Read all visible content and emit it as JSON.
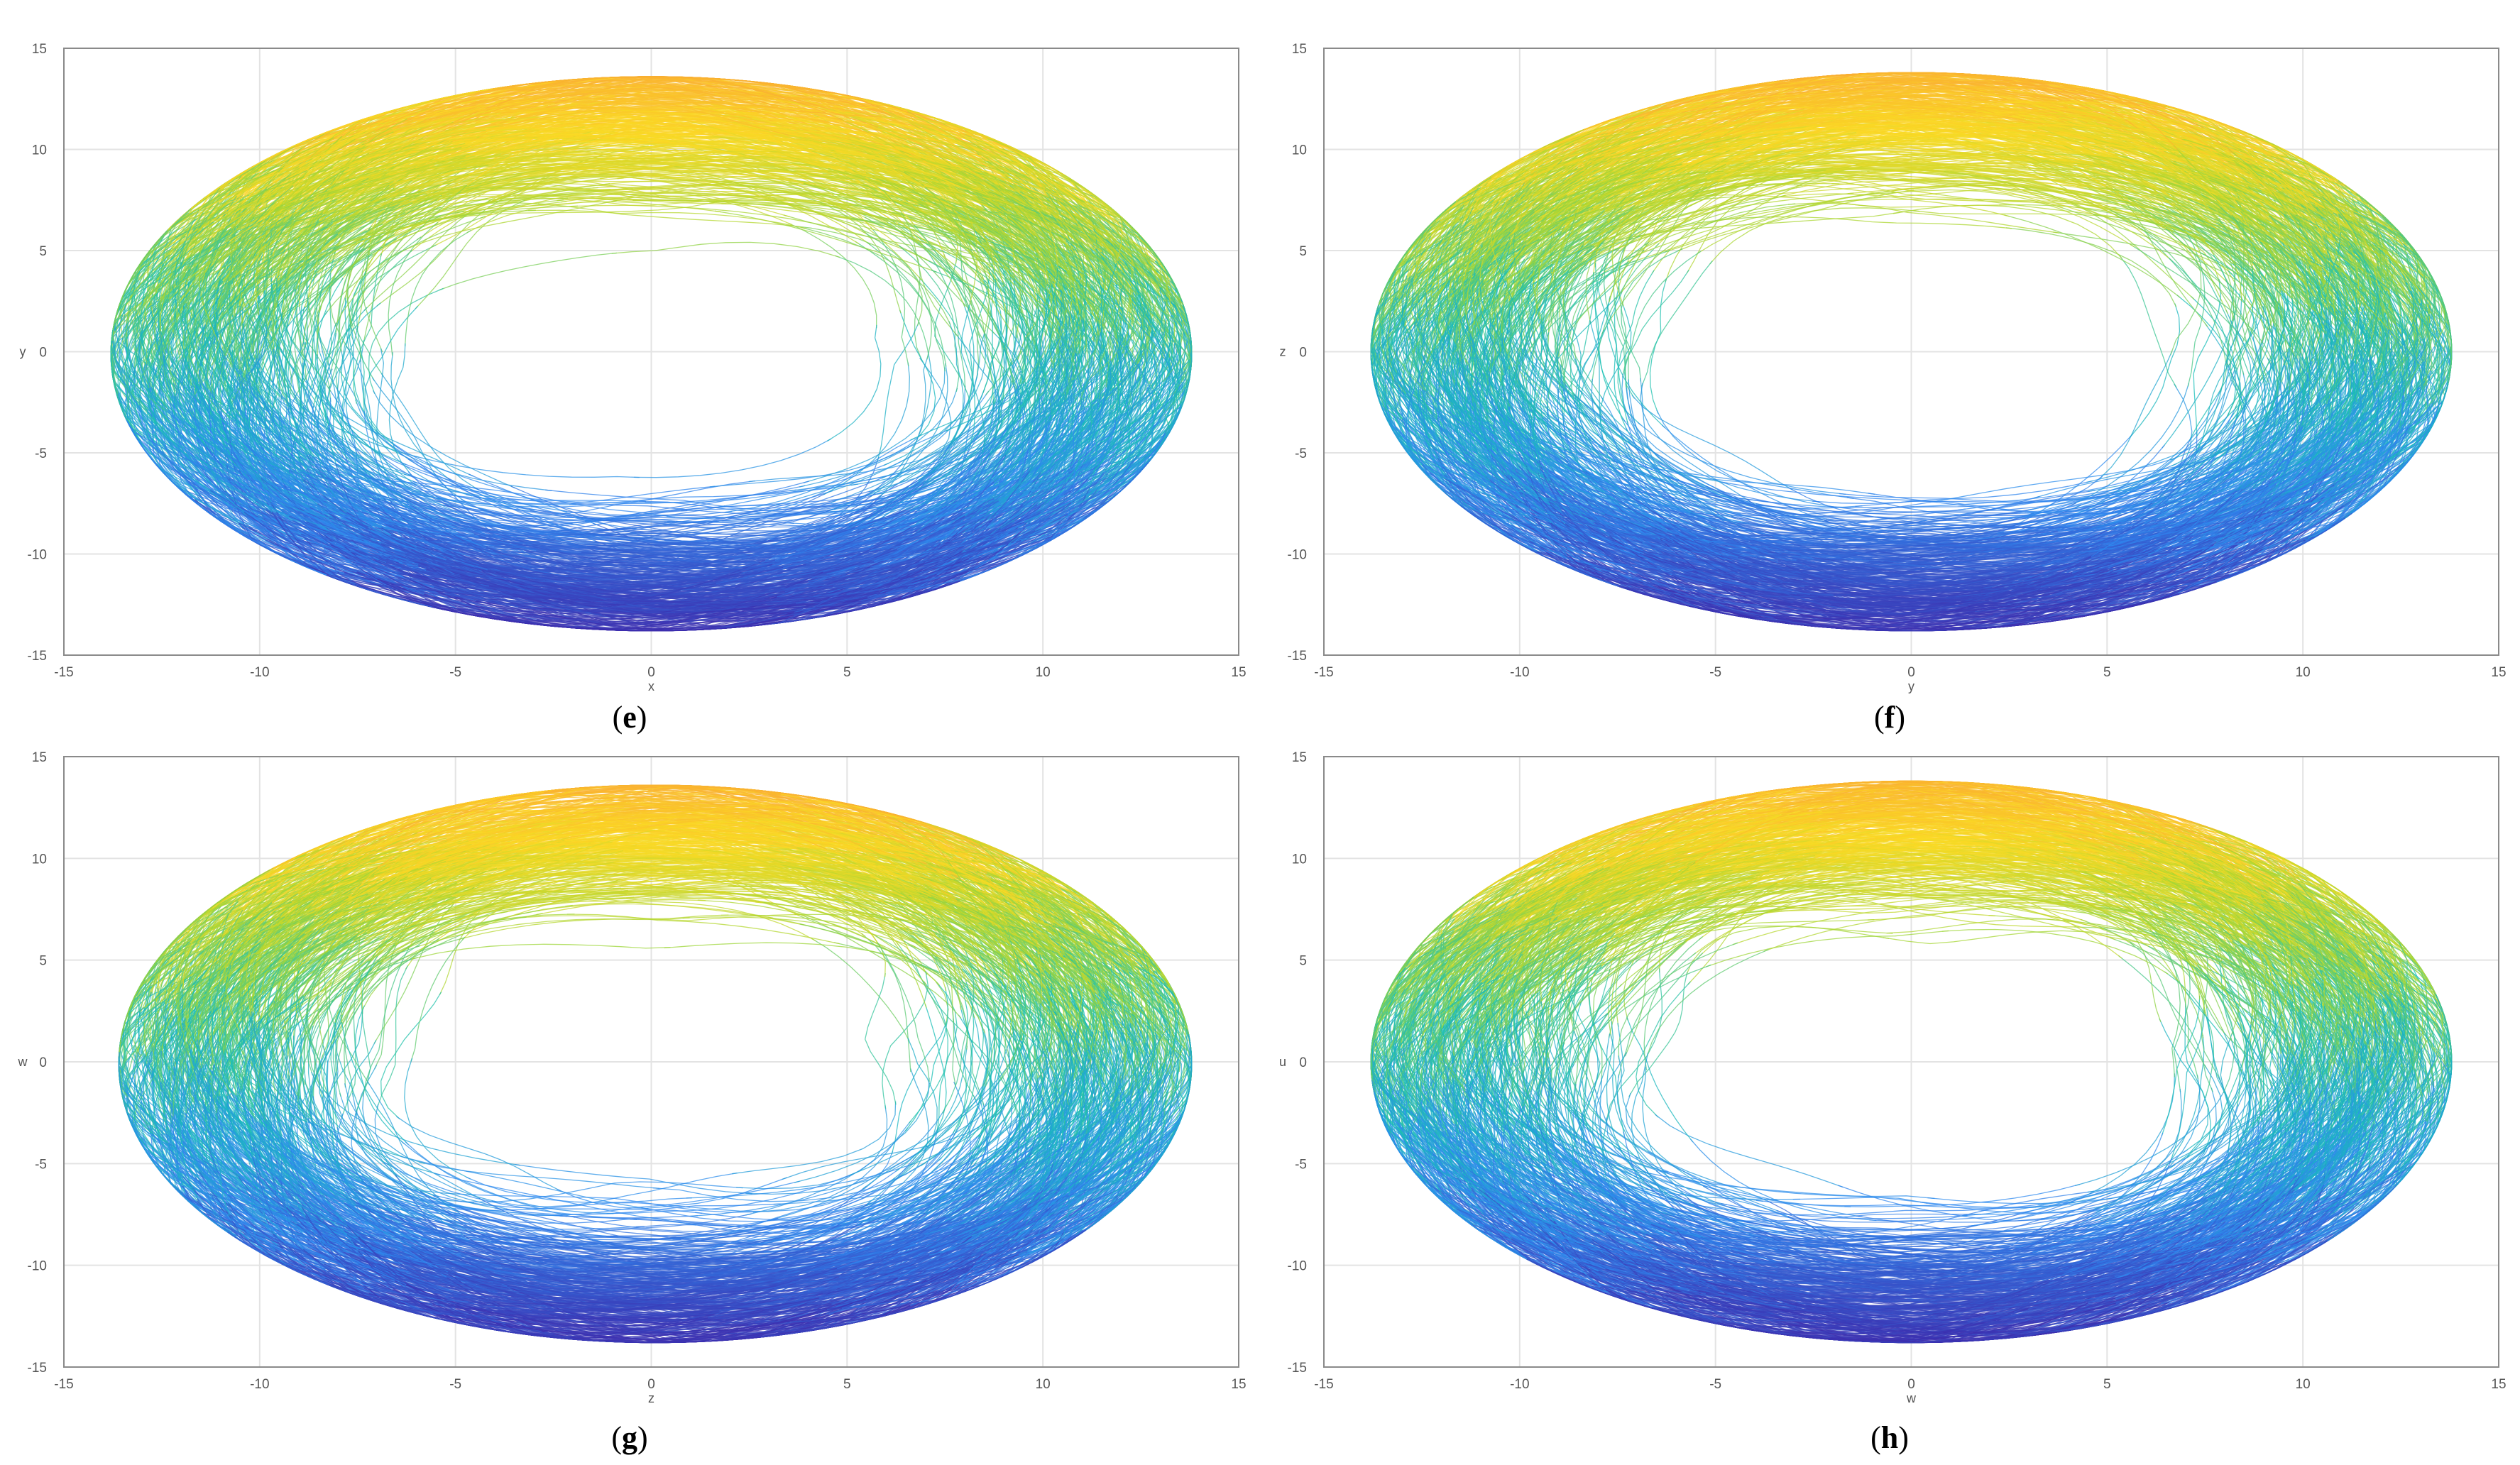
{
  "panels": [
    {
      "id": "e",
      "caption": "e",
      "xlabel": "x",
      "ylabel": "y"
    },
    {
      "id": "f",
      "caption": "f",
      "xlabel": "y",
      "ylabel": "z"
    },
    {
      "id": "g",
      "caption": "g",
      "xlabel": "z",
      "ylabel": "w"
    },
    {
      "id": "h",
      "caption": "h",
      "xlabel": "w",
      "ylabel": "u"
    }
  ],
  "chart_data": [
    {
      "type": "line",
      "title": "",
      "xlabel": "x",
      "ylabel": "y",
      "xlim": [
        -15,
        15
      ],
      "ylim": [
        -15,
        15
      ],
      "xticks": [
        "-15",
        "-10",
        "-5",
        "0",
        "5",
        "10",
        "15"
      ],
      "yticks": [
        "15",
        "10",
        "5",
        "0",
        "-5",
        "-10",
        "-15"
      ],
      "grid": true,
      "colormap": "parula",
      "attractor_extent": {
        "x": [
          -13.8,
          13.8
        ],
        "y": [
          -13.8,
          13.6
        ]
      }
    },
    {
      "type": "line",
      "title": "",
      "xlabel": "y",
      "ylabel": "z",
      "xlim": [
        -15,
        15
      ],
      "ylim": [
        -15,
        15
      ],
      "xticks": [
        "-15",
        "-10",
        "-5",
        "0",
        "5",
        "10",
        "15"
      ],
      "yticks": [
        "15",
        "10",
        "5",
        "0",
        "-5",
        "-10",
        "-15"
      ],
      "grid": true,
      "colormap": "parula",
      "attractor_extent": {
        "x": [
          -13.8,
          13.8
        ],
        "y": [
          -13.8,
          13.8
        ]
      }
    },
    {
      "type": "line",
      "title": "",
      "xlabel": "z",
      "ylabel": "w",
      "xlim": [
        -15,
        15
      ],
      "ylim": [
        -15,
        15
      ],
      "xticks": [
        "-15",
        "-10",
        "-5",
        "0",
        "5",
        "10",
        "15"
      ],
      "yticks": [
        "15",
        "10",
        "5",
        "0",
        "-5",
        "-10",
        "-15"
      ],
      "grid": true,
      "colormap": "parula",
      "attractor_extent": {
        "x": [
          -13.6,
          13.8
        ],
        "y": [
          -13.8,
          13.6
        ]
      }
    },
    {
      "type": "line",
      "title": "",
      "xlabel": "w",
      "ylabel": "u",
      "xlim": [
        -15,
        15
      ],
      "ylim": [
        -15,
        15
      ],
      "xticks": [
        "-15",
        "-10",
        "-5",
        "0",
        "5",
        "10",
        "15"
      ],
      "yticks": [
        "15",
        "10",
        "5",
        "0",
        "-5",
        "-10",
        "-15"
      ],
      "grid": true,
      "colormap": "parula",
      "attractor_extent": {
        "x": [
          -13.8,
          13.8
        ],
        "y": [
          -13.8,
          13.8
        ]
      }
    }
  ],
  "colors": {
    "low": "#3e26a8",
    "midlow": "#2f89f0",
    "mid": "#17bfb5",
    "midhigh": "#a5d633",
    "high": "#fbd924",
    "top": "#f9a833",
    "grid": "#e3e3e3",
    "axis": "#8a8a8a"
  }
}
